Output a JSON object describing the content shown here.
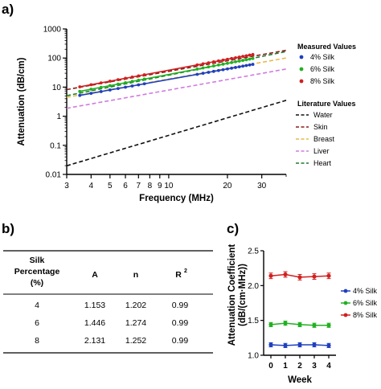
{
  "panels": {
    "a": "a)",
    "b": "b)",
    "c": "c)"
  },
  "chart_data": [
    {
      "type": "line",
      "scale": "log-log",
      "xlabel": "Frequency (MHz)",
      "ylabel": "Attenuation (dB/cm)",
      "xlim": [
        3,
        40
      ],
      "ylim": [
        0.01,
        1000
      ],
      "xticks": [
        3,
        4,
        5,
        6,
        7,
        8,
        9,
        10,
        20,
        30
      ],
      "xtick_labels": [
        "3",
        "4",
        "5",
        "6",
        "7",
        "8",
        "9",
        "10",
        "20",
        "30"
      ],
      "yticks": [
        0.01,
        0.1,
        1,
        10,
        100,
        1000
      ],
      "ytick_labels": [
        "0.01",
        "0.1",
        "1",
        "10",
        "100",
        "1000"
      ],
      "grid": false,
      "legend_position": "right",
      "legend_groups": [
        "Measured Values",
        "Literature Values"
      ],
      "measured": [
        {
          "name": "4% Silk",
          "color": "#1f3fbf",
          "A": 1.153,
          "n": 1.202,
          "x_range": [
            3.5,
            27
          ]
        },
        {
          "name": "6% Silk",
          "color": "#22b022",
          "A": 1.446,
          "n": 1.274,
          "x_range": [
            3.5,
            27
          ]
        },
        {
          "name": "8% Silk",
          "color": "#d02020",
          "A": 2.131,
          "n": 1.252,
          "x_range": [
            3.5,
            27
          ]
        }
      ],
      "literature": [
        {
          "name": "Water",
          "color": "#111111",
          "A": 0.0022,
          "n": 2.0
        },
        {
          "name": "Skin",
          "color": "#8b1a1a",
          "A": 2.2,
          "n": 1.2
        },
        {
          "name": "Breast",
          "color": "#e8b84a",
          "A": 1.2,
          "n": 1.2
        },
        {
          "name": "Liver",
          "color": "#d17be0",
          "A": 0.5,
          "n": 1.2
        },
        {
          "name": "Heart",
          "color": "#1d7a2c",
          "A": 1.15,
          "n": 1.35
        }
      ]
    },
    {
      "type": "table",
      "columns": [
        "Silk Percentage (%)",
        "A",
        "n",
        "R2"
      ],
      "header_lines": [
        [
          "Silk",
          "Percentage",
          "(%)"
        ],
        [
          "A"
        ],
        [
          "n"
        ],
        [
          "R",
          "2"
        ]
      ],
      "rows": [
        [
          "4",
          "1.153",
          "1.202",
          "0.99"
        ],
        [
          "6",
          "1.446",
          "1.274",
          "0.99"
        ],
        [
          "8",
          "2.131",
          "1.252",
          "0.99"
        ]
      ]
    },
    {
      "type": "line",
      "xlabel": "Week",
      "ylabel_lines": [
        "Attenuation Coefficient",
        "(dB/(cm·MHz))"
      ],
      "x": [
        0,
        1,
        2,
        3,
        4
      ],
      "xtick_labels": [
        "0",
        "1",
        "2",
        "3",
        "4"
      ],
      "ylim": [
        1.0,
        2.5
      ],
      "yticks": [
        1.0,
        1.5,
        2.0,
        2.5
      ],
      "ytick_labels": [
        "1.0",
        "1.5",
        "2.0",
        "2.5"
      ],
      "legend_position": "right",
      "series": [
        {
          "name": "4% Silk",
          "color": "#1f3fbf",
          "values": [
            1.15,
            1.14,
            1.15,
            1.15,
            1.14
          ],
          "err": 0.03
        },
        {
          "name": "6% Silk",
          "color": "#22b022",
          "values": [
            1.44,
            1.46,
            1.44,
            1.43,
            1.43
          ],
          "err": 0.03
        },
        {
          "name": "8% Silk",
          "color": "#d02020",
          "values": [
            2.14,
            2.16,
            2.12,
            2.13,
            2.14
          ],
          "err": 0.04
        }
      ]
    }
  ]
}
